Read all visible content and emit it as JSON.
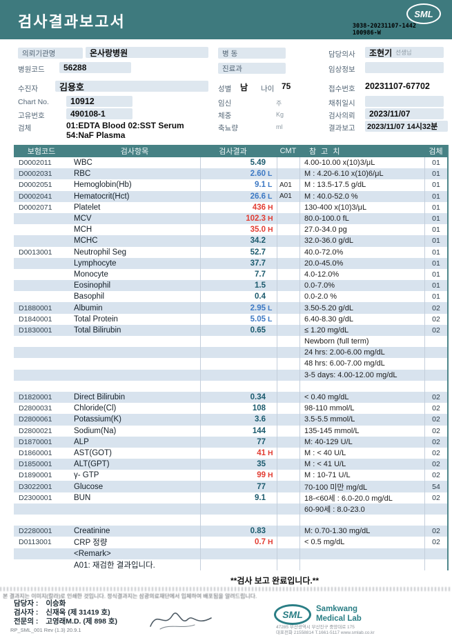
{
  "header": {
    "title": "검사결과보고서",
    "logo_text": "SML",
    "barcode_line1": "3038-20231107-1442",
    "barcode_line2": "100986-W"
  },
  "info": {
    "org_label": "의뢰기관명",
    "org_value": "온사랑병원",
    "hospital_code_label": "병원코드",
    "hospital_code_value": "56288",
    "ward_label": "병 동",
    "dept_label": "진료과",
    "doctor_label": "담당의사",
    "doctor_value": "조현기",
    "doctor_suffix": "선생님",
    "clinical_label": "임상정보",
    "patient_label": "수진자",
    "patient_value": "김용호",
    "sex_label": "성별",
    "sex_value": "남",
    "age_label": "나이",
    "age_value": "75",
    "receipt_label": "접수번호",
    "receipt_value": "20231107-67702",
    "chart_label": "Chart No.",
    "chart_value": "10912",
    "pregnancy_label": "임신",
    "pregnancy_unit": "주",
    "collect_label": "채취일시",
    "uid_label": "고유번호",
    "uid_value": "490108-1",
    "weight_label": "체중",
    "weight_unit": "Kg",
    "request_label": "검사의뢰",
    "request_value": "2023/11/07",
    "specimen_label": "검체",
    "specimen_value_line1": "01:EDTA Blood 02:SST Serum",
    "specimen_value_line2": "54:NaF Plasma",
    "urine_label": "축뇨량",
    "urine_unit": "ml",
    "report_label": "결과보고",
    "report_value": "2023/11/07 14시32분"
  },
  "table": {
    "headers": [
      "보험코드",
      "검사항목",
      "검사결과",
      "CMT",
      "참 고 치",
      "검체"
    ],
    "rows": [
      {
        "code": "D0002011",
        "item": "WBC",
        "result": "5.49",
        "flag": "",
        "cmt": "",
        "ref": "4.00-10.00 x(10)3/μL",
        "spec": "01"
      },
      {
        "code": "D0002031",
        "item": "RBC",
        "result": "2.60",
        "flag": "L",
        "cmt": "",
        "ref": "M : 4.20-6.10 x(10)6/μL",
        "spec": "01"
      },
      {
        "code": "D0002051",
        "item": "Hemoglobin(Hb)",
        "result": "9.1",
        "flag": "L",
        "cmt": "A01",
        "ref": "M : 13.5-17.5 g/dL",
        "spec": "01"
      },
      {
        "code": "D0002041",
        "item": "Hematocrit(Hct)",
        "result": "26.6",
        "flag": "L",
        "cmt": "A01",
        "ref": "M : 40.0-52.0 %",
        "spec": "01"
      },
      {
        "code": "D0002071",
        "item": "Platelet",
        "result": "436",
        "flag": "H",
        "cmt": "",
        "ref": "130-400 x(10)3/μL",
        "spec": "01"
      },
      {
        "code": "",
        "item": "MCV",
        "result": "102.3",
        "flag": "H",
        "cmt": "",
        "ref": "80.0-100.0 fL",
        "spec": "01"
      },
      {
        "code": "",
        "item": "MCH",
        "result": "35.0",
        "flag": "H",
        "cmt": "",
        "ref": "27.0-34.0 pg",
        "spec": "01"
      },
      {
        "code": "",
        "item": "MCHC",
        "result": "34.2",
        "flag": "",
        "cmt": "",
        "ref": "32.0-36.0 g/dL",
        "spec": "01"
      },
      {
        "code": "D0013001",
        "item": "Neutrophil Seg",
        "result": "52.7",
        "flag": "",
        "cmt": "",
        "ref": "40.0-72.0%",
        "spec": "01"
      },
      {
        "code": "",
        "item": "Lymphocyte",
        "result": "37.7",
        "flag": "",
        "cmt": "",
        "ref": "20.0-45.0%",
        "spec": "01"
      },
      {
        "code": "",
        "item": "Monocyte",
        "result": "7.7",
        "flag": "",
        "cmt": "",
        "ref": "4.0-12.0%",
        "spec": "01"
      },
      {
        "code": "",
        "item": "Eosinophil",
        "result": "1.5",
        "flag": "",
        "cmt": "",
        "ref": "0.0-7.0%",
        "spec": "01"
      },
      {
        "code": "",
        "item": "Basophil",
        "result": "0.4",
        "flag": "",
        "cmt": "",
        "ref": "0.0-2.0 %",
        "spec": "01"
      },
      {
        "code": "D1880001",
        "item": "Albumin",
        "result": "2.95",
        "flag": "L",
        "cmt": "",
        "ref": "3.50-5.20 g/dL",
        "spec": "02"
      },
      {
        "code": "D1840001",
        "item": "Total Protein",
        "result": "5.05",
        "flag": "L",
        "cmt": "",
        "ref": "6.40-8.30 g/dL",
        "spec": "02"
      },
      {
        "code": "D1830001",
        "item": "Total Bilirubin",
        "result": "0.65",
        "flag": "",
        "cmt": "",
        "ref": "≤ 1.20 mg/dL",
        "spec": "02"
      },
      {
        "code": "",
        "item": "",
        "result": "",
        "flag": "",
        "cmt": "",
        "ref": "Newborn (full term)",
        "spec": ""
      },
      {
        "code": "",
        "item": "",
        "result": "",
        "flag": "",
        "cmt": "",
        "ref": "24 hrs: 2.00-6.00 mg/dL",
        "spec": ""
      },
      {
        "code": "",
        "item": "",
        "result": "",
        "flag": "",
        "cmt": "",
        "ref": "48 hrs: 6.00-7.00 mg/dL",
        "spec": ""
      },
      {
        "code": "",
        "item": "",
        "result": "",
        "flag": "",
        "cmt": "",
        "ref": "3-5 days: 4.00-12.00 mg/dL",
        "spec": ""
      },
      {
        "code": "",
        "item": "",
        "result": "",
        "flag": "",
        "cmt": "",
        "ref": "",
        "spec": ""
      },
      {
        "code": "D1820001",
        "item": "Direct Bilirubin",
        "result": "0.34",
        "flag": "",
        "cmt": "",
        "ref": "< 0.40 mg/dL",
        "spec": "02"
      },
      {
        "code": "D2800031",
        "item": "Chloride(Cl)",
        "result": "108",
        "flag": "",
        "cmt": "",
        "ref": "98-110 mmol/L",
        "spec": "02"
      },
      {
        "code": "D2800061",
        "item": "Potassium(K)",
        "result": "3.6",
        "flag": "",
        "cmt": "",
        "ref": "3.5-5.5 mmol/L",
        "spec": "02"
      },
      {
        "code": "D2800021",
        "item": "Sodium(Na)",
        "result": "144",
        "flag": "",
        "cmt": "",
        "ref": "135-145 mmol/L",
        "spec": "02"
      },
      {
        "code": "D1870001",
        "item": "ALP",
        "result": "77",
        "flag": "",
        "cmt": "",
        "ref": "M: 40-129 U/L",
        "spec": "02"
      },
      {
        "code": "D1860001",
        "item": "AST(GOT)",
        "result": "41",
        "flag": "H",
        "cmt": "",
        "ref": "M : < 40 U/L",
        "spec": "02"
      },
      {
        "code": "D1850001",
        "item": "ALT(GPT)",
        "result": "35",
        "flag": "",
        "cmt": "",
        "ref": "M : < 41 U/L",
        "spec": "02"
      },
      {
        "code": "D1890001",
        "item": "γ- GTP",
        "result": "99",
        "flag": "H",
        "cmt": "",
        "ref": "M : 10-71 U/L",
        "spec": "02"
      },
      {
        "code": "D3022001",
        "item": "Glucose",
        "result": "77",
        "flag": "",
        "cmt": "",
        "ref": "70-100 미만 mg/dL",
        "spec": "54"
      },
      {
        "code": "D2300001",
        "item": "BUN",
        "result": "9.1",
        "flag": "",
        "cmt": "",
        "ref": "18-<60세 : 6.0-20.0 mg/dL",
        "spec": "02"
      },
      {
        "code": "",
        "item": "",
        "result": "",
        "flag": "",
        "cmt": "",
        "ref": "60-90세 : 8.0-23.0",
        "spec": ""
      },
      {
        "code": "",
        "item": "",
        "result": "",
        "flag": "",
        "cmt": "",
        "ref": "",
        "spec": ""
      },
      {
        "code": "D2280001",
        "item": "Creatinine",
        "result": "0.83",
        "flag": "",
        "cmt": "",
        "ref": "M: 0.70-1.30 mg/dL",
        "spec": "02"
      },
      {
        "code": "D0113001",
        "item": "CRP 정량",
        "result": "0.7",
        "flag": "H",
        "cmt": "",
        "ref": "< 0.5 mg/dL",
        "spec": "02"
      },
      {
        "code": "",
        "item": "<Remark>",
        "result": "",
        "flag": "",
        "cmt": "",
        "ref": "",
        "spec": ""
      },
      {
        "code": "",
        "item": "A01: 재검한 결과입니다.",
        "result": "",
        "flag": "",
        "cmt": "",
        "ref": "",
        "spec": ""
      }
    ]
  },
  "footer": {
    "complete_message": "**검사  보고  완료입니다.**",
    "disclaimer": "본 결과지는 이미지(칼라)로 인쇄한 것입니다. 정식결과지는 삼광의료재단에서 입체하여 배포됨을 알려드립니다.",
    "staff_label": "담당자 :",
    "staff_value": "이승화",
    "examiner_label": "검사자 :",
    "examiner_value": "신재욱 (제 31419 호)",
    "specialist_label": "전문의 :",
    "specialist_value": "고영래M.D. (제 898 호)",
    "logo_text": "SML",
    "lab_name_line1": "Samkwang",
    "lab_name_line2": "Medical Lab",
    "address_line1": "47285 부산광역시 부산진구 중앙대로 175",
    "address_line2": "대표전화 21558814 T.1661-5117 www.smlab.co.kr",
    "doc_code": "RP_SML_001 Rev (1.3) 20.9.1"
  }
}
